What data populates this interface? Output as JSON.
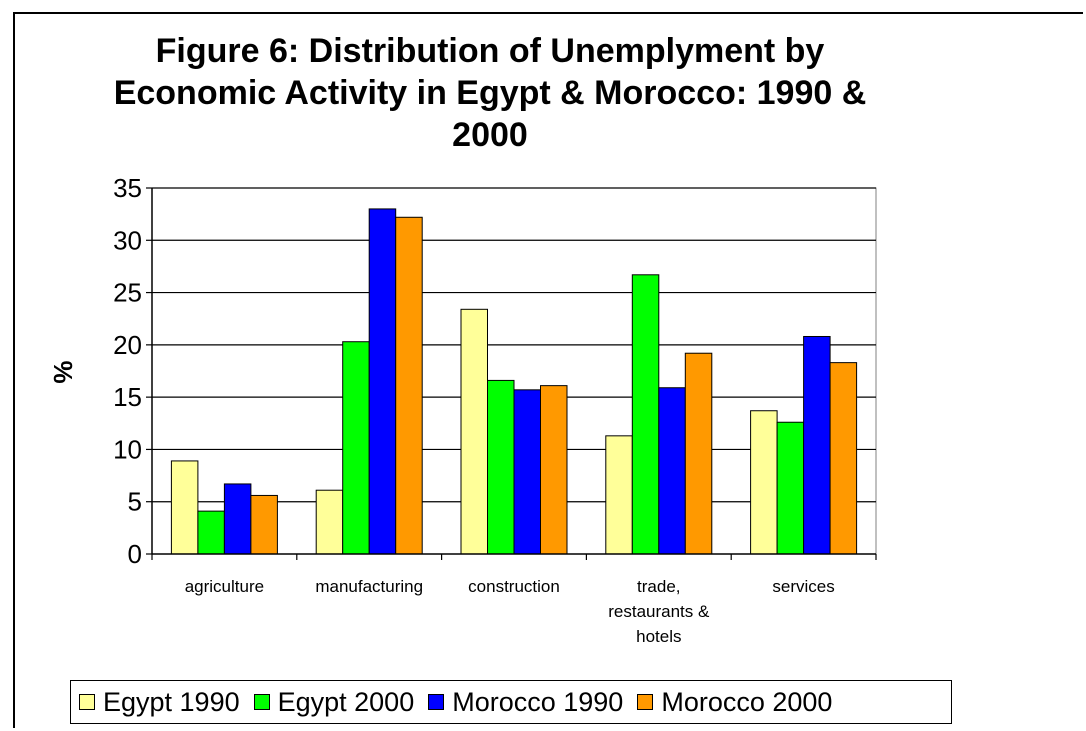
{
  "chart_data": {
    "type": "bar",
    "title": "Figure 6: Distribution of Unemplyment by Economic Activity in Egypt & Morocco: 1990 & 2000",
    "title_lines": [
      "Figure 6: Distribution of Unemplyment by",
      "Economic Activity in Egypt & Morocco: 1990 &",
      "2000"
    ],
    "ylabel": "%",
    "xlabel": "",
    "ylim": [
      0,
      35
    ],
    "yticks": [
      0,
      5,
      10,
      15,
      20,
      25,
      30,
      35
    ],
    "grid": true,
    "legend_position": "bottom",
    "categories": [
      "agriculture",
      "manufacturing",
      "construction",
      "trade, restaurants & hotels",
      "services"
    ],
    "category_label_lines": [
      [
        "agriculture"
      ],
      [
        "manufacturing"
      ],
      [
        "construction"
      ],
      [
        "trade,",
        "restaurants &",
        "hotels"
      ],
      [
        "services"
      ]
    ],
    "series": [
      {
        "name": "Egypt 1990",
        "color": "#FFFF99",
        "values": [
          8.9,
          6.1,
          23.4,
          11.3,
          13.7
        ]
      },
      {
        "name": "Egypt 2000",
        "color": "#00FF00",
        "values": [
          4.1,
          20.3,
          16.6,
          26.7,
          12.6
        ]
      },
      {
        "name": "Morocco 1990",
        "color": "#0000FF",
        "values": [
          6.7,
          33.0,
          15.7,
          15.9,
          20.8
        ]
      },
      {
        "name": "Morocco 2000",
        "color": "#FF9900",
        "values": [
          5.6,
          32.2,
          16.1,
          19.2,
          18.3
        ]
      }
    ]
  }
}
